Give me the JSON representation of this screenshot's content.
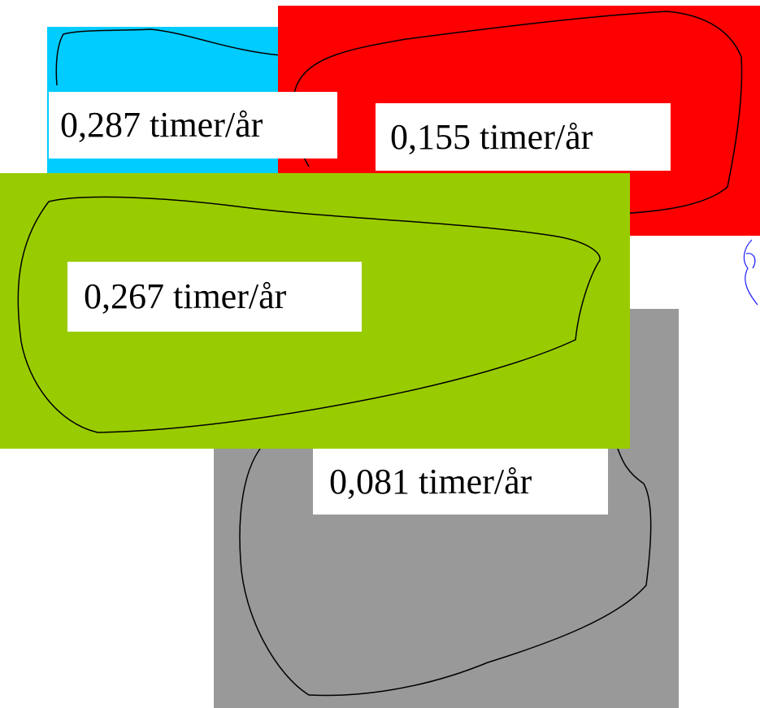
{
  "regions": [
    {
      "label": "0,287 timer/år"
    },
    {
      "label": "0,155 timer/år"
    },
    {
      "label": "0,267 timer/år"
    },
    {
      "label": "0,081 timer/år"
    }
  ]
}
